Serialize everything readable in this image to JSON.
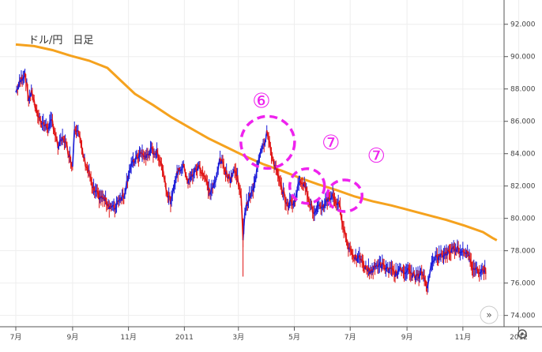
{
  "chart_data": {
    "type": "candlestick",
    "title": "ドル/円　日足",
    "y_ticks": [
      "92.000",
      "90.000",
      "88.000",
      "86.000",
      "84.000",
      "82.000",
      "80.000",
      "78.000",
      "76.000",
      "74.000"
    ],
    "y_tick_values": [
      92,
      90,
      88,
      86,
      84,
      82,
      80,
      78,
      76,
      74
    ],
    "ylim": [
      73.3,
      93.5
    ],
    "x_ticks": [
      {
        "label": "7月",
        "t": 0
      },
      {
        "label": "9月",
        "t": 62
      },
      {
        "label": "11月",
        "t": 123
      },
      {
        "label": "2011",
        "t": 184
      },
      {
        "label": "3月",
        "t": 243
      },
      {
        "label": "5月",
        "t": 304
      },
      {
        "label": "7月",
        "t": 365
      },
      {
        "label": "9月",
        "t": 427
      },
      {
        "label": "11月",
        "t": 488
      },
      {
        "label": "2012",
        "t": 549
      }
    ],
    "series": [
      {
        "name": "",
        "type": "price",
        "color_up": "#1a1ad8",
        "color_down": "#e01414",
        "points": [
          [
            0,
            87.8
          ],
          [
            6,
            88.6
          ],
          [
            10,
            89.0
          ],
          [
            14,
            87.4
          ],
          [
            18,
            87.8
          ],
          [
            22,
            86.6
          ],
          [
            28,
            86.0
          ],
          [
            34,
            85.6
          ],
          [
            40,
            86.0
          ],
          [
            46,
            84.4
          ],
          [
            52,
            85.0
          ],
          [
            58,
            84.0
          ],
          [
            62,
            83.2
          ],
          [
            64,
            85.6
          ],
          [
            68,
            85.6
          ],
          [
            72,
            84.2
          ],
          [
            76,
            83.4
          ],
          [
            80,
            82.8
          ],
          [
            84,
            81.8
          ],
          [
            90,
            81.4
          ],
          [
            96,
            81.2
          ],
          [
            102,
            80.8
          ],
          [
            108,
            80.6
          ],
          [
            112,
            81.2
          ],
          [
            118,
            81.4
          ],
          [
            124,
            83.0
          ],
          [
            130,
            83.6
          ],
          [
            136,
            84.0
          ],
          [
            142,
            83.8
          ],
          [
            148,
            84.2
          ],
          [
            154,
            84.0
          ],
          [
            158,
            83.6
          ],
          [
            162,
            82.6
          ],
          [
            166,
            81.4
          ],
          [
            170,
            81.0
          ],
          [
            174,
            82.4
          ],
          [
            178,
            83.0
          ],
          [
            184,
            83.2
          ],
          [
            188,
            82.2
          ],
          [
            194,
            82.8
          ],
          [
            200,
            83.2
          ],
          [
            206,
            82.6
          ],
          [
            212,
            81.6
          ],
          [
            218,
            82.2
          ],
          [
            222,
            83.6
          ],
          [
            226,
            83.4
          ],
          [
            230,
            82.8
          ],
          [
            234,
            82.4
          ],
          [
            238,
            83.0
          ],
          [
            242,
            82.6
          ],
          [
            246,
            81.2
          ],
          [
            248,
            78.8
          ],
          [
            250,
            80.4
          ],
          [
            254,
            81.2
          ],
          [
            258,
            81.6
          ],
          [
            262,
            82.4
          ],
          [
            264,
            83.4
          ],
          [
            268,
            84.4
          ],
          [
            272,
            84.8
          ],
          [
            274,
            85.4
          ],
          [
            276,
            84.8
          ],
          [
            280,
            83.8
          ],
          [
            284,
            83.0
          ],
          [
            288,
            82.2
          ],
          [
            292,
            81.6
          ],
          [
            296,
            80.8
          ],
          [
            300,
            81.0
          ],
          [
            304,
            81.0
          ],
          [
            310,
            82.4
          ],
          [
            314,
            82.2
          ],
          [
            318,
            81.6
          ],
          [
            322,
            80.8
          ],
          [
            326,
            80.2
          ],
          [
            330,
            80.6
          ],
          [
            336,
            80.8
          ],
          [
            340,
            81.2
          ],
          [
            346,
            81.4
          ],
          [
            350,
            81.0
          ],
          [
            354,
            80.6
          ],
          [
            358,
            79.4
          ],
          [
            362,
            78.4
          ],
          [
            366,
            78.0
          ],
          [
            370,
            77.6
          ],
          [
            374,
            77.4
          ],
          [
            376,
            77.6
          ],
          [
            378,
            77.2
          ],
          [
            384,
            76.8
          ],
          [
            390,
            76.8
          ],
          [
            396,
            77.2
          ],
          [
            402,
            77.0
          ],
          [
            408,
            76.8
          ],
          [
            414,
            76.6
          ],
          [
            420,
            76.8
          ],
          [
            426,
            76.8
          ],
          [
            432,
            76.6
          ],
          [
            436,
            76.4
          ],
          [
            440,
            76.4
          ],
          [
            444,
            76.6
          ],
          [
            448,
            76.0
          ],
          [
            450,
            75.8
          ],
          [
            454,
            77.4
          ],
          [
            458,
            77.6
          ],
          [
            462,
            77.6
          ],
          [
            468,
            77.8
          ],
          [
            474,
            78.0
          ],
          [
            480,
            78.2
          ],
          [
            486,
            78.0
          ],
          [
            492,
            78.0
          ],
          [
            498,
            77.0
          ],
          [
            504,
            76.8
          ],
          [
            510,
            76.8
          ],
          [
            514,
            76.8
          ]
        ]
      },
      {
        "name": "",
        "type": "moving-average",
        "color": "#f5a21e",
        "points": [
          [
            0,
            90.75
          ],
          [
            20,
            90.65
          ],
          [
            40,
            90.4
          ],
          [
            60,
            90.05
          ],
          [
            80,
            89.75
          ],
          [
            100,
            89.3
          ],
          [
            115,
            88.5
          ],
          [
            130,
            87.7
          ],
          [
            150,
            87.0
          ],
          [
            170,
            86.25
          ],
          [
            190,
            85.6
          ],
          [
            210,
            84.95
          ],
          [
            230,
            84.4
          ],
          [
            250,
            83.85
          ],
          [
            270,
            83.35
          ],
          [
            290,
            82.95
          ],
          [
            310,
            82.5
          ],
          [
            330,
            82.1
          ],
          [
            350,
            81.75
          ],
          [
            370,
            81.35
          ],
          [
            390,
            81.05
          ],
          [
            410,
            80.8
          ],
          [
            430,
            80.5
          ],
          [
            450,
            80.2
          ],
          [
            470,
            79.9
          ],
          [
            490,
            79.55
          ],
          [
            510,
            79.15
          ],
          [
            520,
            78.8
          ],
          [
            525,
            78.65
          ]
        ]
      }
    ],
    "annotations": [
      {
        "label": "⑥",
        "t": 275,
        "y": 84.7
      },
      {
        "label": "⑦",
        "t": 318,
        "y": 82.0
      },
      {
        "label": "⑦",
        "t": 359,
        "y": 81.4
      }
    ],
    "grid": true
  },
  "ui": {
    "scroll_right_icon": "double-chevron-right-icon",
    "settings_icon": "gear-icon"
  }
}
